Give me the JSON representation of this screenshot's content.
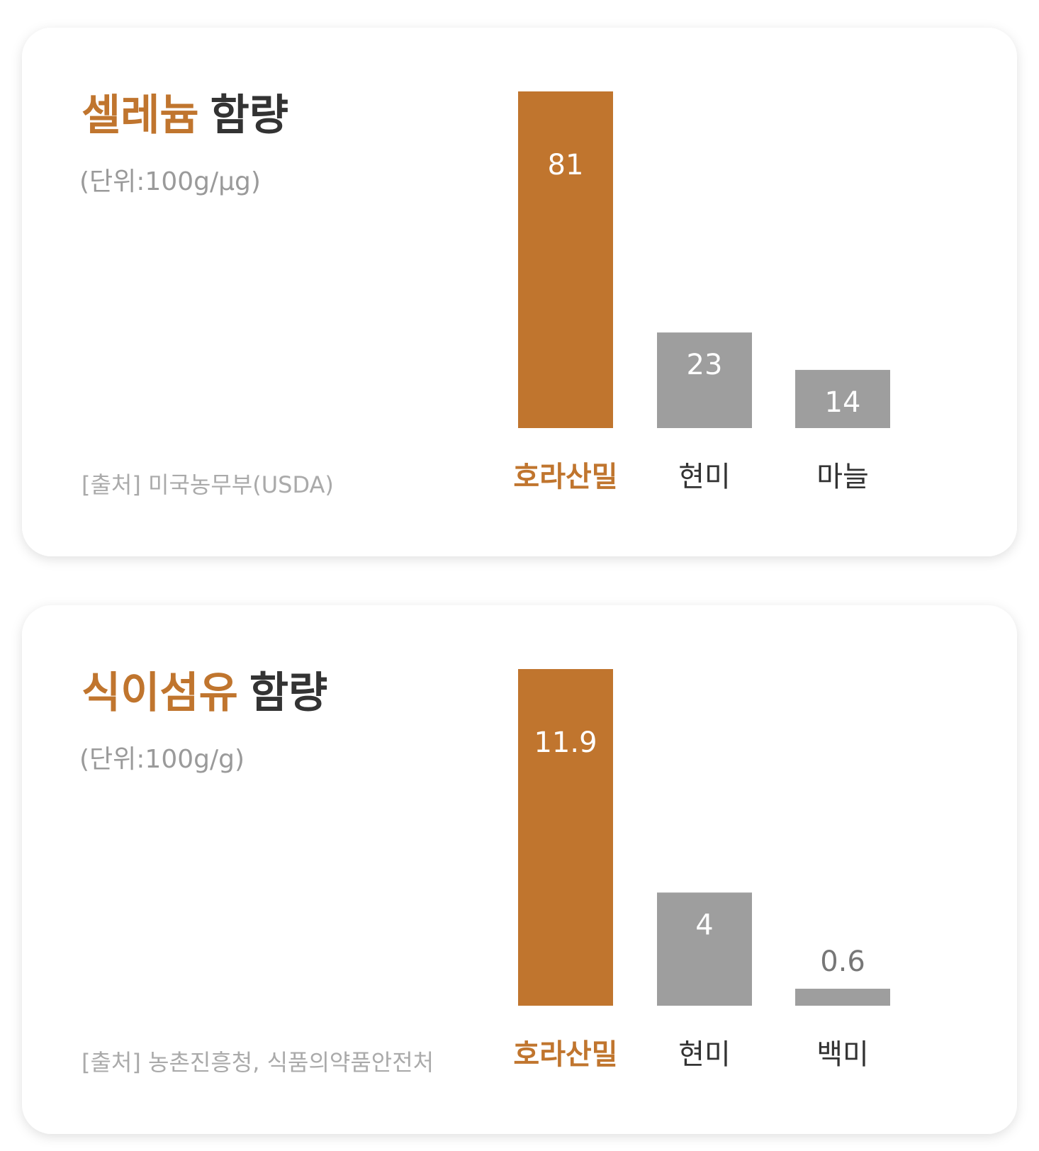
{
  "chart_data": [
    {
      "type": "bar",
      "title": {
        "highlight": "셀레늄",
        "rest": "함량"
      },
      "subtitle": "(단위:100g/μg)",
      "source": "[출처] 미국농무부(USDA)",
      "categories": [
        "호라산밀",
        "현미",
        "마늘"
      ],
      "values": [
        81,
        23,
        14
      ],
      "colors": [
        "#c0752e",
        "#9e9e9e",
        "#9e9e9e"
      ],
      "ylim": [
        0,
        81
      ]
    },
    {
      "type": "bar",
      "title": {
        "highlight": "식이섬유",
        "rest": "함량"
      },
      "subtitle": "(단위:100g/g)",
      "source": "[출처] 농촌진흥청, 식품의약품안전처",
      "categories": [
        "호라산밀",
        "현미",
        "백미"
      ],
      "values": [
        11.9,
        4,
        0.6
      ],
      "colors": [
        "#c0752e",
        "#9e9e9e",
        "#9e9e9e"
      ],
      "ylim": [
        0,
        11.9
      ]
    }
  ]
}
